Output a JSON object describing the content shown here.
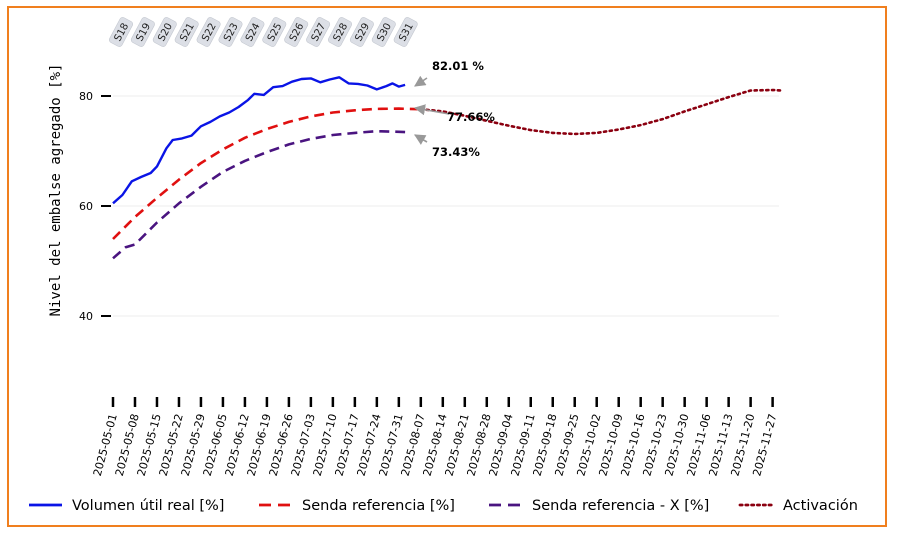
{
  "chart_data": {
    "type": "line",
    "ylabel": "Nivel del embalse agregado [%]",
    "ylim": [
      30,
      101
    ],
    "yticks": [
      40,
      60,
      80
    ],
    "grid": true,
    "x_ticks": [
      "2025-05-01",
      "2025-05-08",
      "2025-05-15",
      "2025-05-22",
      "2025-05-29",
      "2025-06-05",
      "2025-06-12",
      "2025-06-19",
      "2025-06-26",
      "2025-07-03",
      "2025-07-10",
      "2025-07-17",
      "2025-07-24",
      "2025-07-31",
      "2025-08-07",
      "2025-08-14",
      "2025-08-21",
      "2025-08-28",
      "2025-09-04",
      "2025-09-11",
      "2025-09-18",
      "2025-09-25",
      "2025-10-02",
      "2025-10-09",
      "2025-10-16",
      "2025-10-23",
      "2025-10-30",
      "2025-11-06",
      "2025-11-13",
      "2025-11-20",
      "2025-11-27"
    ],
    "week_labels": [
      "S18",
      "S19",
      "S20",
      "S21",
      "S22",
      "S23",
      "S24",
      "S25",
      "S26",
      "S27",
      "S28",
      "S29",
      "S30",
      "S31"
    ],
    "legend_position": "bottom",
    "series": [
      {
        "name": "Volumen útil real [%]",
        "style": "solid",
        "color": "#0a14e6",
        "points": [
          [
            "2025-05-01",
            60.5
          ],
          [
            "2025-05-04",
            62.0
          ],
          [
            "2025-05-07",
            64.5
          ],
          [
            "2025-05-10",
            65.3
          ],
          [
            "2025-05-13",
            66.0
          ],
          [
            "2025-05-15",
            67.2
          ],
          [
            "2025-05-18",
            70.5
          ],
          [
            "2025-05-20",
            72.0
          ],
          [
            "2025-05-23",
            72.3
          ],
          [
            "2025-05-26",
            72.8
          ],
          [
            "2025-05-29",
            74.5
          ],
          [
            "2025-06-01",
            75.3
          ],
          [
            "2025-06-04",
            76.3
          ],
          [
            "2025-06-07",
            77.0
          ],
          [
            "2025-06-10",
            78.0
          ],
          [
            "2025-06-13",
            79.3
          ],
          [
            "2025-06-15",
            80.4
          ],
          [
            "2025-06-18",
            80.2
          ],
          [
            "2025-06-21",
            81.6
          ],
          [
            "2025-06-24",
            81.8
          ],
          [
            "2025-06-27",
            82.6
          ],
          [
            "2025-06-30",
            83.1
          ],
          [
            "2025-07-03",
            83.2
          ],
          [
            "2025-07-06",
            82.5
          ],
          [
            "2025-07-09",
            83.0
          ],
          [
            "2025-07-12",
            83.4
          ],
          [
            "2025-07-15",
            82.3
          ],
          [
            "2025-07-18",
            82.2
          ],
          [
            "2025-07-21",
            81.9
          ],
          [
            "2025-07-24",
            81.2
          ],
          [
            "2025-07-27",
            81.8
          ],
          [
            "2025-07-29",
            82.3
          ],
          [
            "2025-07-31",
            81.7
          ],
          [
            "2025-08-02",
            82.01
          ]
        ]
      },
      {
        "name": "Senda referencia [%]",
        "style": "dashed",
        "color": "#e01010",
        "points": [
          [
            "2025-05-01",
            54.0
          ],
          [
            "2025-05-08",
            58.0
          ],
          [
            "2025-05-15",
            61.5
          ],
          [
            "2025-05-22",
            64.8
          ],
          [
            "2025-05-29",
            67.8
          ],
          [
            "2025-06-05",
            70.3
          ],
          [
            "2025-06-12",
            72.4
          ],
          [
            "2025-06-19",
            74.0
          ],
          [
            "2025-06-26",
            75.3
          ],
          [
            "2025-07-03",
            76.3
          ],
          [
            "2025-07-10",
            77.0
          ],
          [
            "2025-07-17",
            77.4
          ],
          [
            "2025-07-24",
            77.66
          ],
          [
            "2025-07-31",
            77.7
          ],
          [
            "2025-08-07",
            77.6
          ]
        ]
      },
      {
        "name": "Senda referencia - X [%]",
        "style": "dashed",
        "color": "#4a1480",
        "points": [
          [
            "2025-05-01",
            50.5
          ],
          [
            "2025-05-05",
            52.5
          ],
          [
            "2025-05-08",
            53.0
          ],
          [
            "2025-05-15",
            57.0
          ],
          [
            "2025-05-22",
            60.5
          ],
          [
            "2025-05-29",
            63.5
          ],
          [
            "2025-06-05",
            66.2
          ],
          [
            "2025-06-12",
            68.2
          ],
          [
            "2025-06-19",
            69.8
          ],
          [
            "2025-06-26",
            71.2
          ],
          [
            "2025-07-03",
            72.2
          ],
          [
            "2025-07-10",
            72.9
          ],
          [
            "2025-07-17",
            73.3
          ],
          [
            "2025-07-24",
            73.6
          ],
          [
            "2025-07-31",
            73.5
          ],
          [
            "2025-08-02",
            73.43
          ]
        ]
      },
      {
        "name": "Activación",
        "style": "dotted",
        "color": "#8b0010",
        "points": [
          [
            "2025-08-07",
            77.6
          ],
          [
            "2025-08-14",
            77.2
          ],
          [
            "2025-08-21",
            76.4
          ],
          [
            "2025-08-28",
            75.5
          ],
          [
            "2025-09-04",
            74.6
          ],
          [
            "2025-09-11",
            73.8
          ],
          [
            "2025-09-18",
            73.3
          ],
          [
            "2025-09-25",
            73.1
          ],
          [
            "2025-10-02",
            73.3
          ],
          [
            "2025-10-09",
            73.9
          ],
          [
            "2025-10-16",
            74.7
          ],
          [
            "2025-10-23",
            75.8
          ],
          [
            "2025-10-30",
            77.2
          ],
          [
            "2025-11-06",
            78.5
          ],
          [
            "2025-11-13",
            79.8
          ],
          [
            "2025-11-20",
            81.0
          ],
          [
            "2025-11-27",
            81.1
          ],
          [
            "2025-11-30",
            81.0
          ]
        ]
      }
    ],
    "annotations": [
      {
        "text": "82.01 %",
        "date": "2025-08-02",
        "value": 82.01
      },
      {
        "text": "77.66%",
        "date": "2025-08-02",
        "value": 77.66
      },
      {
        "text": "73.43%",
        "date": "2025-08-02",
        "value": 73.43
      }
    ]
  }
}
